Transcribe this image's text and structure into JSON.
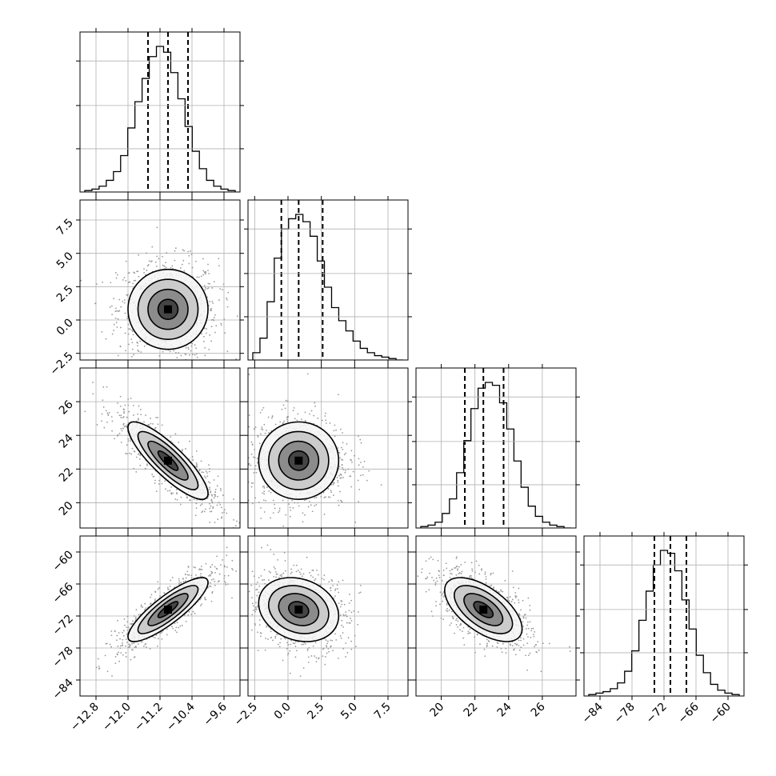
{
  "chart_data": {
    "type": "corner",
    "grid": true,
    "parameters": [
      {
        "range": [
          -13.2,
          -9.2
        ],
        "ticks": [
          -12.8,
          -12.0,
          -11.2,
          -10.4,
          -9.6
        ],
        "tick_labels": [
          "−12.8",
          "−12.0",
          "−11.2",
          "−10.4",
          "−9.6"
        ],
        "quantiles": [
          -11.5,
          -11.0,
          -10.5
        ],
        "mean": -11.0,
        "sd": 0.5
      },
      {
        "range": [
          -3.0,
          9.0
        ],
        "ticks": [
          -2.5,
          0.0,
          2.5,
          5.0,
          7.5
        ],
        "tick_labels": [
          "−2.5",
          "0.0",
          "2.5",
          "5.0",
          "7.5"
        ],
        "quantiles": [
          -0.5,
          0.8,
          2.6
        ],
        "mean": 0.8,
        "sd": 1.5
      },
      {
        "range": [
          18.5,
          28.0
        ],
        "ticks": [
          20,
          22,
          24,
          26
        ],
        "tick_labels": [
          "20",
          "22",
          "24",
          "26"
        ],
        "quantiles": [
          21.4,
          22.5,
          23.7
        ],
        "mean": 22.5,
        "sd": 1.15
      },
      {
        "range": [
          -87.0,
          -57.0
        ],
        "ticks": [
          -84,
          -78,
          -72,
          -66,
          -60
        ],
        "tick_labels": [
          "−84",
          "−78",
          "−72",
          "−66",
          "−60"
        ],
        "quantiles": [
          -73.8,
          -70.8,
          -67.8
        ],
        "mean": -70.8,
        "sd": 3.0
      }
    ],
    "histograms": [
      [
        0.01,
        0.02,
        0.04,
        0.08,
        0.14,
        0.25,
        0.44,
        0.62,
        0.78,
        0.93,
        1.0,
        0.96,
        0.82,
        0.64,
        0.45,
        0.28,
        0.16,
        0.08,
        0.04,
        0.02,
        0.01
      ],
      [
        0.05,
        0.15,
        0.4,
        0.7,
        0.9,
        0.97,
        1.0,
        0.95,
        0.85,
        0.68,
        0.5,
        0.36,
        0.27,
        0.2,
        0.13,
        0.08,
        0.05,
        0.03,
        0.02,
        0.01,
        0.0
      ],
      [
        0.01,
        0.02,
        0.04,
        0.1,
        0.2,
        0.38,
        0.6,
        0.82,
        0.96,
        1.0,
        0.98,
        0.86,
        0.68,
        0.46,
        0.28,
        0.15,
        0.08,
        0.04,
        0.02,
        0.01,
        0.0
      ],
      [
        0.01,
        0.02,
        0.03,
        0.05,
        0.09,
        0.17,
        0.31,
        0.52,
        0.72,
        0.9,
        1.0,
        0.98,
        0.86,
        0.66,
        0.46,
        0.28,
        0.16,
        0.08,
        0.04,
        0.02,
        0.01
      ]
    ],
    "correlations": [
      [
        1.0,
        0.0,
        -0.85,
        0.85
      ],
      [
        0.0,
        1.0,
        0.0,
        -0.2
      ],
      [
        -0.85,
        0.0,
        1.0,
        -0.6
      ],
      [
        0.85,
        -0.2,
        -0.6,
        1.0
      ]
    ],
    "contour_levels": [
      0.5,
      1.0,
      1.5,
      2.0
    ]
  }
}
